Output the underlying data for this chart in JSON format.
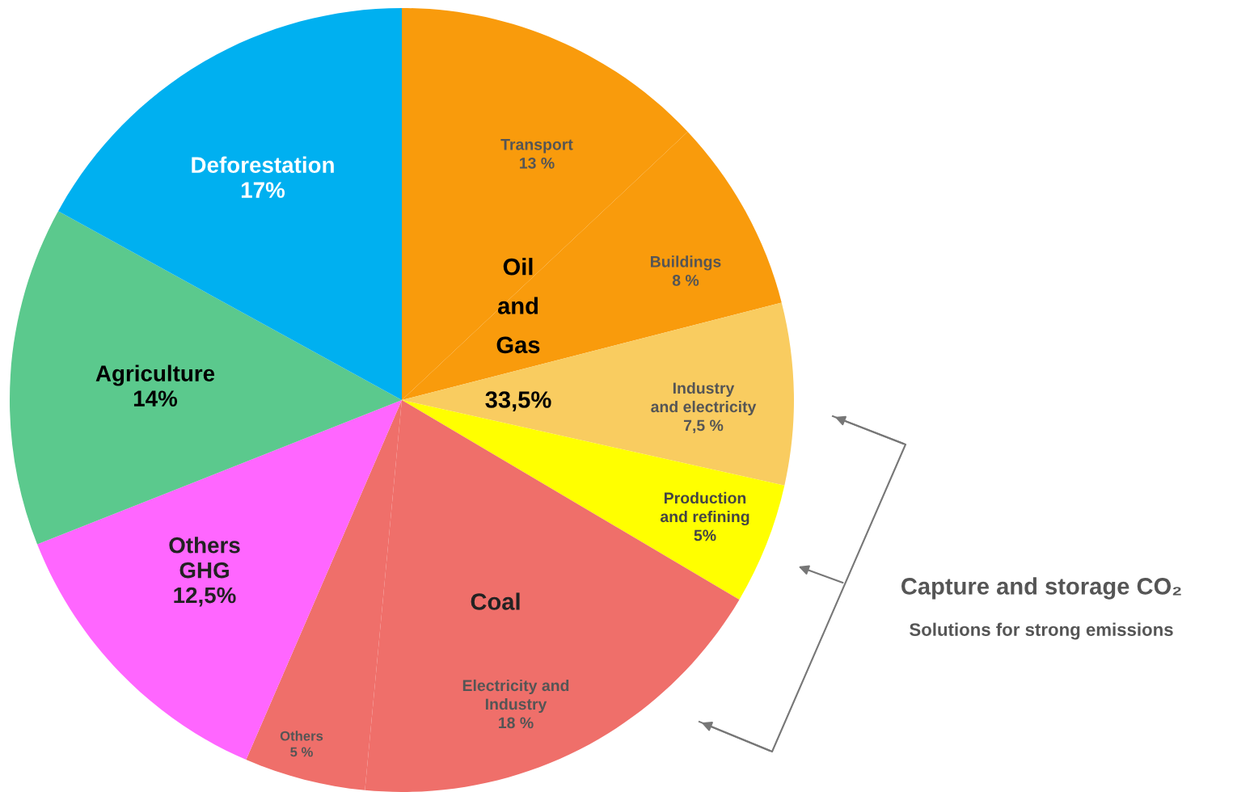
{
  "chart_data": {
    "type": "pie",
    "categories": [
      "Transport",
      "Buildings",
      "Industry\nand electricity",
      "Production\nand refining",
      "Electricity and\nIndustry",
      "Others",
      "Others\nGHG",
      "Agriculture",
      "Deforestation"
    ],
    "values": [
      13,
      8,
      7.5,
      5,
      18,
      5,
      12.5,
      14,
      17
    ],
    "value_labels": [
      "13 %",
      "8 %",
      "7,5 %",
      "5%",
      "18 %",
      "5 %",
      "12,5%",
      "14%",
      "17%"
    ],
    "colors": [
      "#f99b0c",
      "#f99b0c",
      "#f9cc60",
      "#ffff00",
      "#ef6f6a",
      "#ef6f6a",
      "#ff66ff",
      "#5bc98d",
      "#00b0f0"
    ],
    "annotations": [
      "Oil\nand\nGas",
      "33,5%",
      "Coal",
      "Capture and storage CO₂",
      "Solutions for strong emissions"
    ],
    "legend": false
  }
}
